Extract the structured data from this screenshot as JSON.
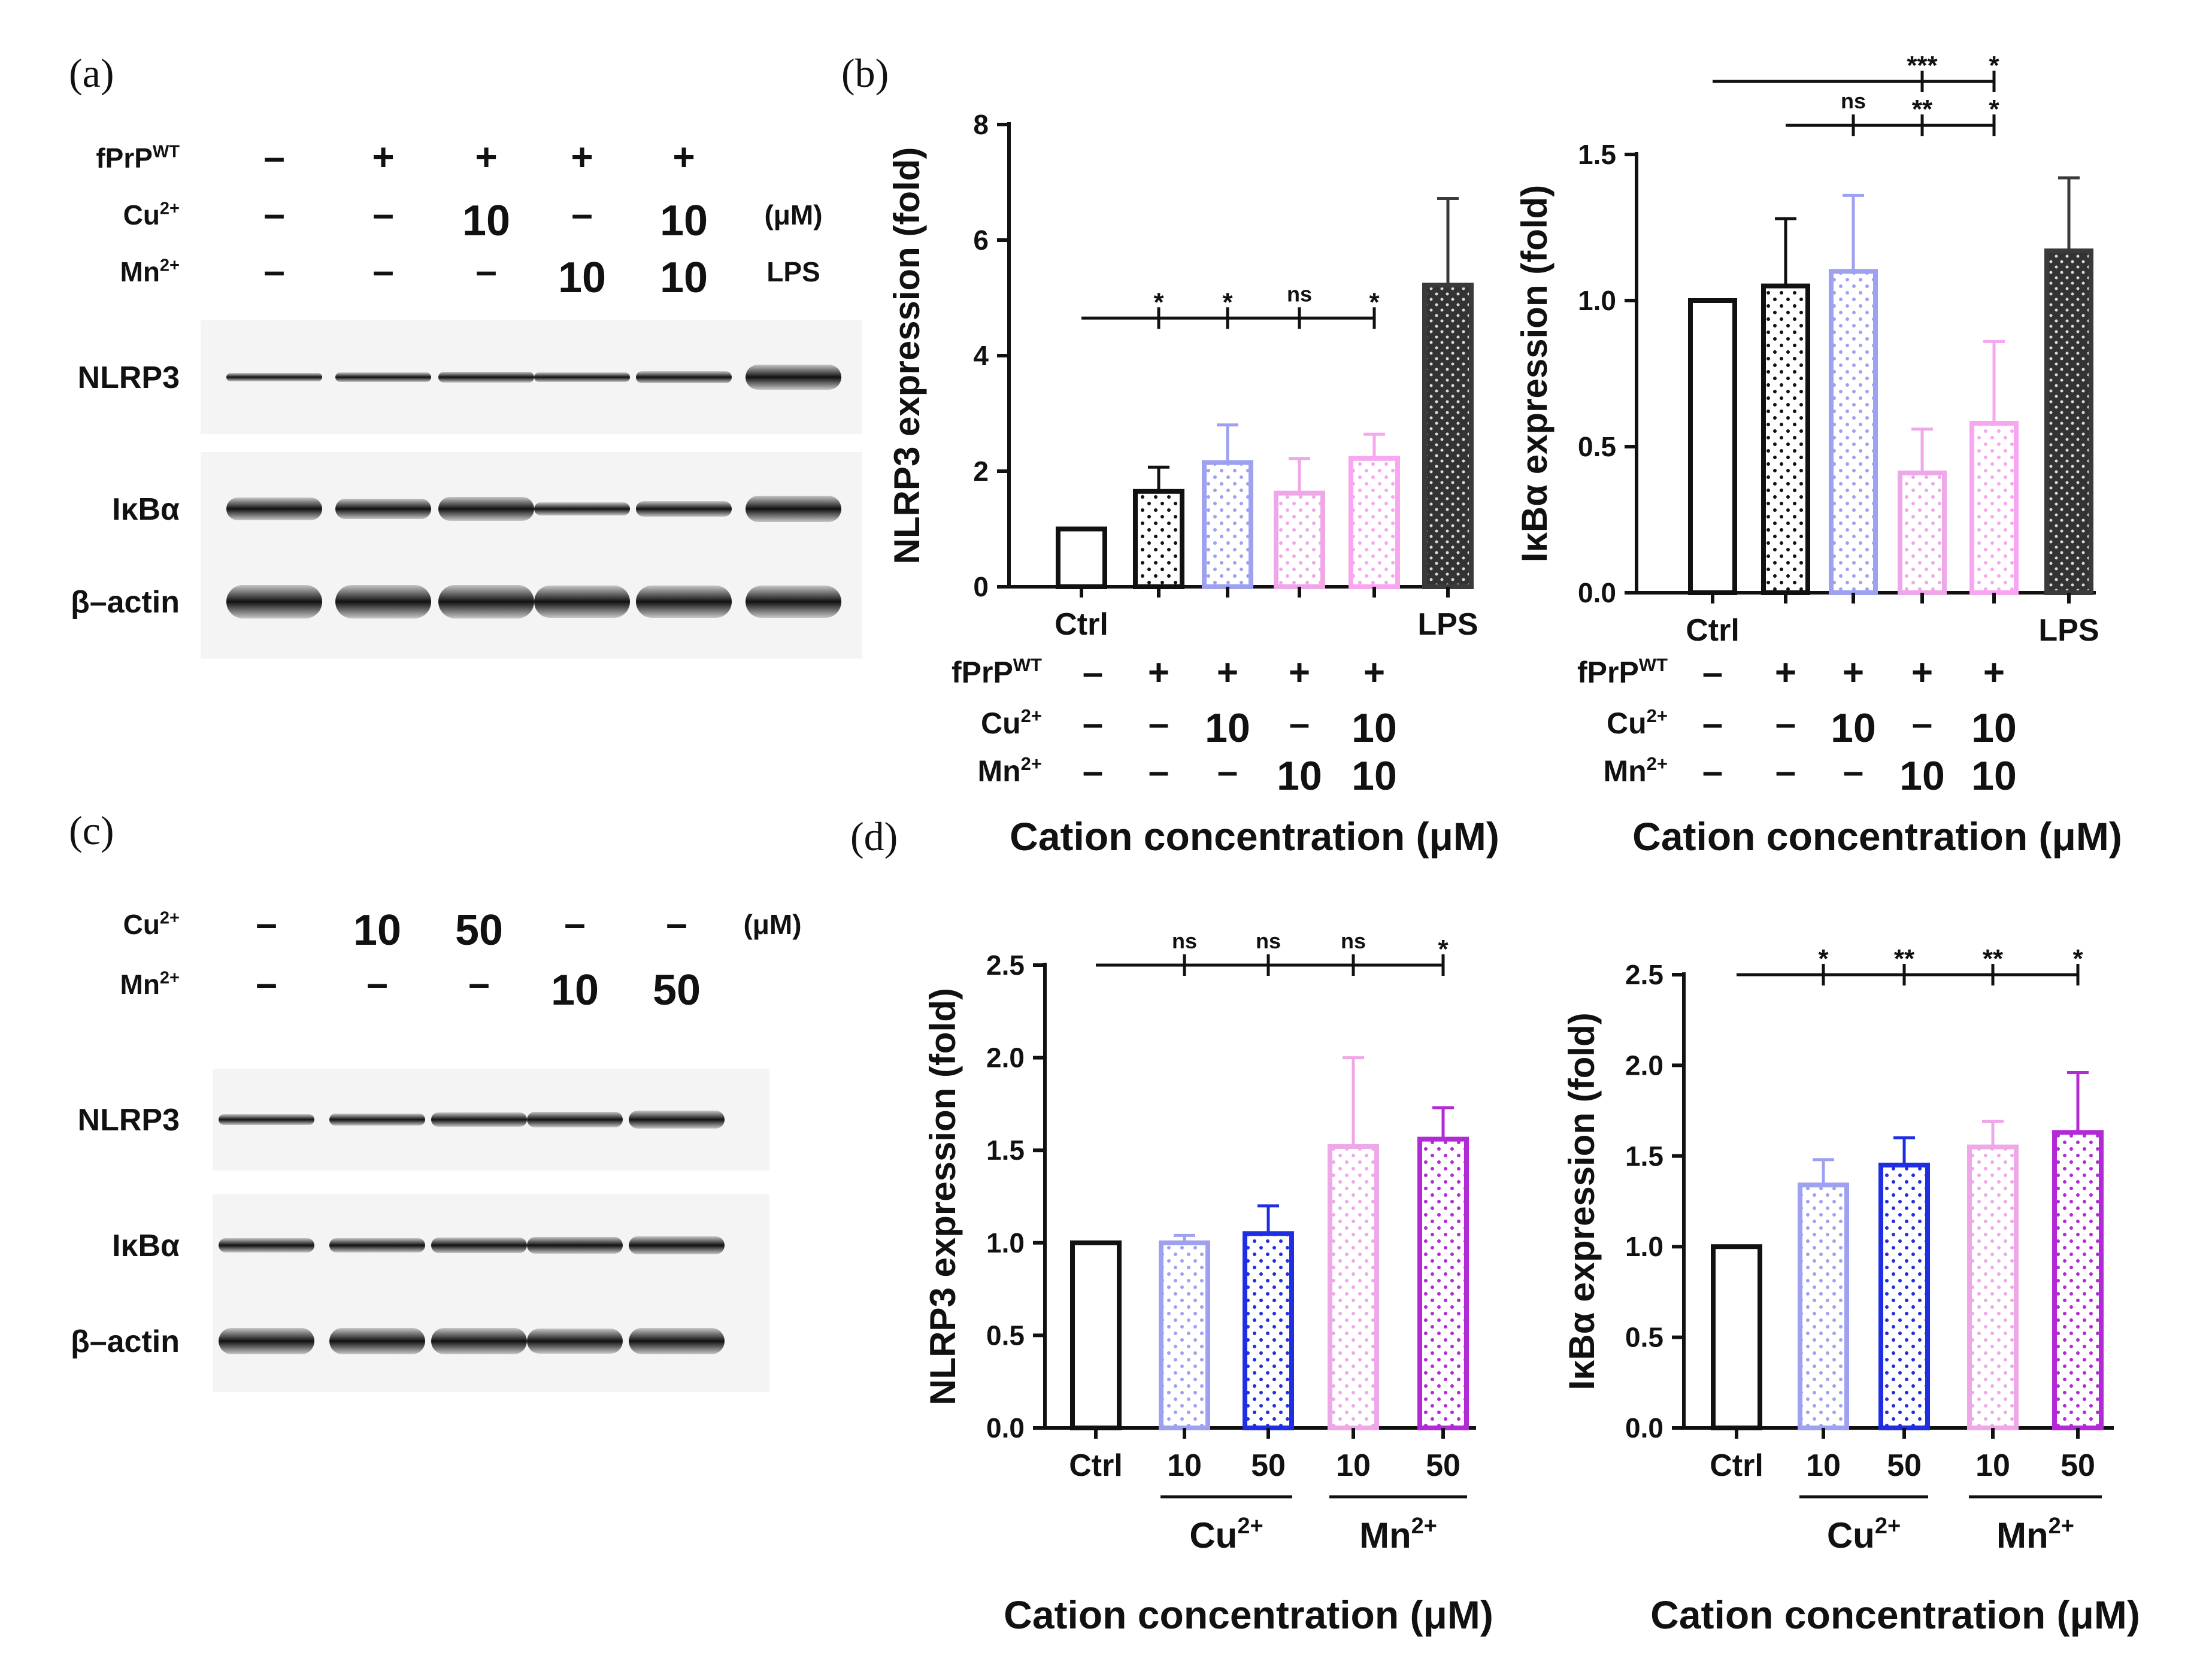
{
  "panels": {
    "a": "(a)",
    "b": "(b)",
    "c": "(c)",
    "d": "(d)"
  },
  "blot_a": {
    "rows": [
      {
        "label": "fPrP",
        "sup": "WT",
        "cells": [
          "–",
          "+",
          "+",
          "+",
          "+"
        ]
      },
      {
        "label": "Cu",
        "sup": "2+",
        "cells": [
          "–",
          "–",
          "10",
          "–",
          "10"
        ],
        "extra": "(μM)"
      },
      {
        "label": "Mn",
        "sup": "2+",
        "cells": [
          "–",
          "–",
          "–",
          "10",
          "10"
        ],
        "extra": "LPS"
      }
    ],
    "bands": [
      "NLRP3",
      "IκBα",
      "β–actin"
    ]
  },
  "blot_c": {
    "rows": [
      {
        "label": "Cu",
        "sup": "2+",
        "cells": [
          "–",
          "10",
          "50",
          "–",
          "–"
        ],
        "extra": "(μM)"
      },
      {
        "label": "Mn",
        "sup": "2+",
        "cells": [
          "–",
          "–",
          "–",
          "10",
          "50"
        ]
      }
    ],
    "bands": [
      "NLRP3",
      "IκBα",
      "β–actin"
    ]
  },
  "treat_b": {
    "rows": [
      {
        "label": "fPrP",
        "sup": "WT",
        "cells": [
          "–",
          "+",
          "+",
          "+",
          "+"
        ]
      },
      {
        "label": "Cu",
        "sup": "2+",
        "cells": [
          "–",
          "–",
          "10",
          "–",
          "10"
        ]
      },
      {
        "label": "Mn",
        "sup": "2+",
        "cells": [
          "–",
          "–",
          "–",
          "10",
          "10"
        ]
      }
    ],
    "xlabel": "Cation concentration (μM)"
  },
  "group_d": {
    "cu": "Cu",
    "mn": "Mn",
    "sup": "2+",
    "xlabel": "Cation concentration (μM)"
  },
  "chart_data": [
    {
      "type": "bar",
      "title": "",
      "ylabel": "NLRP3 expression (fold)",
      "categories": [
        "Ctrl",
        "fPrP",
        "fPrP+Cu 10",
        "fPrP+Mn 10",
        "fPrP+Cu 10+Mn 10",
        "LPS"
      ],
      "tick_labels": [
        "Ctrl",
        "",
        "",
        "",
        "",
        "LPS"
      ],
      "values": [
        1.0,
        1.65,
        2.15,
        1.62,
        2.22,
        5.22
      ],
      "errors": [
        0,
        0.42,
        0.65,
        0.6,
        0.42,
        1.5
      ],
      "ylim": [
        0,
        8
      ],
      "yticks": [
        "0",
        "2",
        "4",
        "6",
        "8"
      ],
      "significance": [
        {
          "from": 0,
          "tops": [
            {
              "bar": 1,
              "label": "*"
            },
            {
              "bar": 2,
              "label": "*"
            },
            {
              "bar": 3,
              "label": "ns"
            },
            {
              "bar": 4,
              "label": "*"
            }
          ],
          "level": 4.65
        }
      ]
    },
    {
      "type": "bar",
      "title": "",
      "ylabel": "IκBα expression (fold)",
      "categories": [
        "Ctrl",
        "fPrP",
        "fPrP+Cu 10",
        "fPrP+Mn 10",
        "fPrP+Cu 10+Mn 10",
        "LPS"
      ],
      "tick_labels": [
        "Ctrl",
        "",
        "",
        "",
        "",
        "LPS"
      ],
      "values": [
        1.0,
        1.05,
        1.1,
        0.41,
        0.58,
        1.17
      ],
      "errors": [
        0,
        0.23,
        0.26,
        0.15,
        0.28,
        0.25
      ],
      "ylim": [
        0,
        1.5
      ],
      "yticks": [
        "0.0",
        "0.5",
        "1.0",
        "1.5"
      ],
      "significance": [
        {
          "from": 0,
          "tops": [
            {
              "bar": 3,
              "label": "***"
            },
            {
              "bar": 4,
              "label": "*"
            }
          ],
          "level": 1.75
        },
        {
          "from": 1,
          "tops": [
            {
              "bar": 2,
              "label": "ns"
            },
            {
              "bar": 3,
              "label": "**"
            },
            {
              "bar": 4,
              "label": "*"
            }
          ],
          "level": 1.6
        }
      ]
    },
    {
      "type": "bar",
      "title": "",
      "ylabel": "NLRP3 expression (fold)",
      "categories": [
        "Ctrl",
        "Cu 10",
        "Cu 50",
        "Mn 10",
        "Mn 50"
      ],
      "tick_labels": [
        "Ctrl",
        "10",
        "50",
        "10",
        "50"
      ],
      "values": [
        1.0,
        1.0,
        1.05,
        1.52,
        1.56
      ],
      "errors": [
        0,
        0.04,
        0.15,
        0.48,
        0.17
      ],
      "ylim": [
        0,
        2.5
      ],
      "yticks": [
        "0.0",
        "0.5",
        "1.0",
        "1.5",
        "2.0",
        "2.5"
      ],
      "significance": [
        {
          "from": 0,
          "tops": [
            {
              "bar": 1,
              "label": "ns"
            },
            {
              "bar": 2,
              "label": "ns"
            },
            {
              "bar": 3,
              "label": "ns"
            },
            {
              "bar": 4,
              "label": "*"
            }
          ],
          "level": 2.5
        }
      ]
    },
    {
      "type": "bar",
      "title": "",
      "ylabel": "IκBα expression (fold)",
      "categories": [
        "Ctrl",
        "Cu 10",
        "Cu 50",
        "Mn 10",
        "Mn 50"
      ],
      "tick_labels": [
        "Ctrl",
        "10",
        "50",
        "10",
        "50"
      ],
      "values": [
        1.0,
        1.34,
        1.45,
        1.55,
        1.63
      ],
      "errors": [
        0,
        0.14,
        0.15,
        0.14,
        0.33
      ],
      "ylim": [
        0,
        2.5
      ],
      "yticks": [
        "0.0",
        "0.5",
        "1.0",
        "1.5",
        "2.0",
        "2.5"
      ],
      "significance": [
        {
          "from": 0,
          "tops": [
            {
              "bar": 1,
              "label": "*"
            },
            {
              "bar": 2,
              "label": "**"
            },
            {
              "bar": 3,
              "label": "**"
            },
            {
              "bar": 4,
              "label": "*"
            }
          ],
          "level": 2.5
        }
      ]
    }
  ],
  "colors": {
    "black": "#111111",
    "cu10": "#9ea1f0",
    "cu50": "#1f2ee0",
    "mn10": "#eea8e8",
    "mn50": "#b22ad6",
    "fprp_pink": "#f7a6ef",
    "lps": "#3a3a3a",
    "band": "#151515"
  }
}
